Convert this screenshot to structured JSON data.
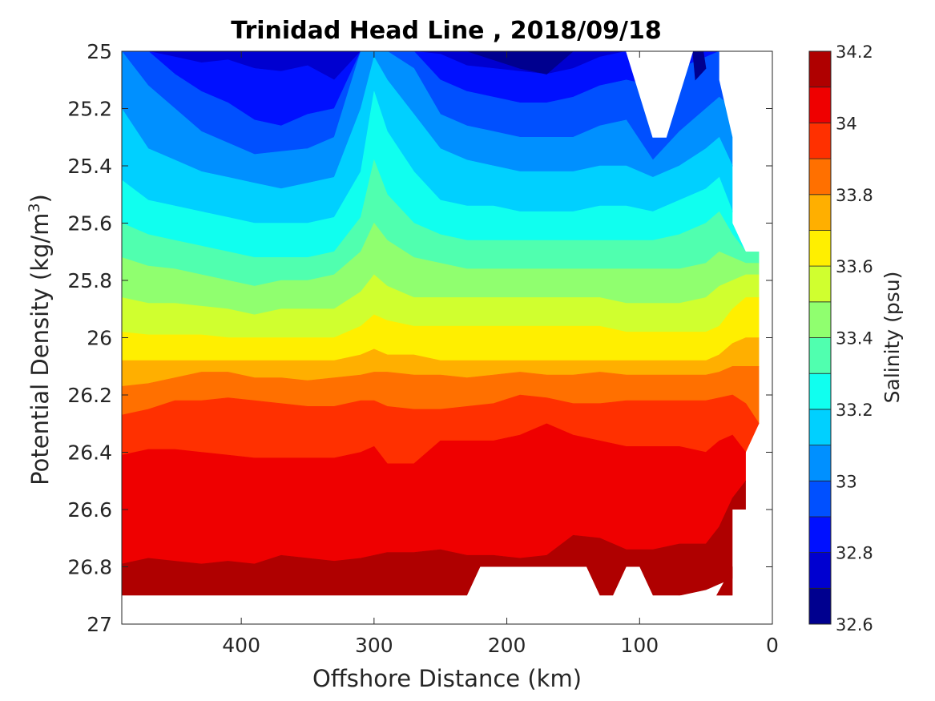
{
  "chart_data": {
    "type": "heatmap",
    "subtype": "filled-contour",
    "title": "Trinidad Head Line , 2018/09/18",
    "xlabel": "Offshore Distance (km)",
    "ylabel_main": "Potential Density (kg/m",
    "ylabel_sup": "3",
    "ylabel_tail": ")",
    "colorbar_label": "Salinity (psu)",
    "xlim": [
      490,
      0
    ],
    "x_reversed": true,
    "ylim": [
      25,
      27
    ],
    "y_reversed": true,
    "x_ticks": [
      400,
      300,
      200,
      100,
      0
    ],
    "x_tick_labels": [
      "400",
      "300",
      "200",
      "100",
      "0"
    ],
    "y_ticks": [
      25,
      25.2,
      25.4,
      25.6,
      25.8,
      26,
      26.2,
      26.4,
      26.6,
      26.8,
      27
    ],
    "y_tick_labels": [
      "25",
      "25.2",
      "25.4",
      "25.6",
      "25.8",
      "26",
      "26.2",
      "26.4",
      "26.6",
      "26.8",
      "27"
    ],
    "colorbar_range": [
      32.6,
      34.2
    ],
    "colorbar_levels": [
      32.6,
      32.7,
      32.8,
      32.9,
      33.0,
      33.1,
      33.2,
      33.3,
      33.4,
      33.5,
      33.6,
      33.7,
      33.8,
      33.9,
      34.0,
      34.1,
      34.2
    ],
    "colorbar_ticks": [
      32.6,
      32.8,
      33,
      33.2,
      33.4,
      33.6,
      33.8,
      34,
      34.2
    ],
    "colorbar_tick_labels": [
      "32.6",
      "32.8",
      "33",
      "33.2",
      "33.4",
      "33.6",
      "33.8",
      "34",
      "34.2"
    ],
    "colormap": [
      "#00008f",
      "#0000d0",
      "#0010ff",
      "#0050ff",
      "#0090ff",
      "#00d0ff",
      "#10ffef",
      "#50ffaf",
      "#90ff6f",
      "#d0ff2f",
      "#ffef00",
      "#ffaf00",
      "#ff7000",
      "#ff3000",
      "#ef0000",
      "#af0000"
    ],
    "x_profile": [
      490,
      470,
      450,
      430,
      410,
      390,
      370,
      350,
      330,
      310,
      300,
      290,
      270,
      250,
      230,
      210,
      190,
      170,
      150,
      130,
      110,
      90,
      70,
      50,
      40,
      30,
      20,
      10
    ],
    "iso_salinity_depths": [
      {
        "salinity": 32.8,
        "density": [
          25.0,
          25.0,
          25.02,
          25.04,
          25.03,
          25.06,
          25.07,
          25.05,
          25.1,
          25.0,
          25.0,
          25.0,
          25.0,
          25.01,
          25.05,
          25.06,
          25.07,
          25.08,
          25.06,
          25.02,
          25.0,
          25.0,
          25.0,
          25.0,
          25.0,
          25.0,
          25.0,
          25.0
        ]
      },
      {
        "salinity": 32.9,
        "density": [
          25.0,
          25.0,
          25.08,
          25.14,
          25.18,
          25.24,
          25.26,
          25.22,
          25.2,
          25.0,
          25.0,
          25.0,
          25.0,
          25.1,
          25.14,
          25.16,
          25.18,
          25.18,
          25.16,
          25.12,
          25.1,
          25.12,
          25.06,
          25.02,
          25.0,
          25.0,
          25.0,
          25.0
        ]
      },
      {
        "salinity": 33.0,
        "density": [
          25.0,
          25.12,
          25.2,
          25.28,
          25.32,
          25.36,
          25.35,
          25.34,
          25.3,
          25.0,
          25.0,
          25.0,
          25.06,
          25.22,
          25.26,
          25.28,
          25.3,
          25.3,
          25.3,
          25.26,
          25.24,
          25.38,
          25.28,
          25.2,
          25.16,
          25.2,
          25.3,
          25.3
        ]
      },
      {
        "salinity": 33.1,
        "density": [
          25.2,
          25.34,
          25.38,
          25.42,
          25.44,
          25.46,
          25.48,
          25.46,
          25.44,
          25.2,
          25.02,
          25.1,
          25.22,
          25.34,
          25.38,
          25.4,
          25.42,
          25.42,
          25.42,
          25.4,
          25.4,
          25.44,
          25.4,
          25.34,
          25.3,
          25.4,
          25.5,
          25.5
        ]
      },
      {
        "salinity": 33.2,
        "density": [
          25.45,
          25.52,
          25.54,
          25.56,
          25.58,
          25.6,
          25.6,
          25.6,
          25.58,
          25.42,
          25.14,
          25.28,
          25.42,
          25.52,
          25.54,
          25.54,
          25.56,
          25.56,
          25.56,
          25.54,
          25.54,
          25.56,
          25.52,
          25.48,
          25.44,
          25.56,
          25.64,
          25.64
        ]
      },
      {
        "salinity": 33.3,
        "density": [
          25.6,
          25.64,
          25.66,
          25.68,
          25.7,
          25.72,
          25.72,
          25.72,
          25.7,
          25.58,
          25.38,
          25.5,
          25.6,
          25.64,
          25.66,
          25.66,
          25.66,
          25.66,
          25.66,
          25.66,
          25.66,
          25.66,
          25.64,
          25.6,
          25.56,
          25.64,
          25.7,
          25.7
        ]
      },
      {
        "salinity": 33.4,
        "density": [
          25.72,
          25.75,
          25.76,
          25.78,
          25.8,
          25.82,
          25.8,
          25.8,
          25.78,
          25.7,
          25.6,
          25.66,
          25.72,
          25.74,
          25.76,
          25.76,
          25.76,
          25.76,
          25.76,
          25.76,
          25.76,
          25.76,
          25.76,
          25.74,
          25.7,
          25.72,
          25.74,
          25.74
        ]
      },
      {
        "salinity": 33.5,
        "density": [
          25.86,
          25.88,
          25.88,
          25.89,
          25.9,
          25.92,
          25.9,
          25.9,
          25.9,
          25.84,
          25.78,
          25.82,
          25.86,
          25.86,
          25.86,
          25.86,
          25.86,
          25.86,
          25.86,
          25.86,
          25.88,
          25.88,
          25.88,
          25.86,
          25.82,
          25.8,
          25.78,
          25.78
        ]
      },
      {
        "salinity": 33.6,
        "density": [
          25.98,
          25.99,
          25.99,
          25.99,
          26.0,
          26.0,
          26.0,
          26.0,
          26.0,
          25.96,
          25.92,
          25.94,
          25.96,
          25.96,
          25.96,
          25.96,
          25.96,
          25.96,
          25.96,
          25.96,
          25.98,
          25.98,
          25.98,
          25.98,
          25.96,
          25.9,
          25.86,
          25.86
        ]
      },
      {
        "salinity": 33.7,
        "density": [
          26.08,
          26.08,
          26.08,
          26.08,
          26.08,
          26.08,
          26.08,
          26.08,
          26.08,
          26.06,
          26.04,
          26.06,
          26.06,
          26.08,
          26.08,
          26.08,
          26.08,
          26.08,
          26.08,
          26.08,
          26.08,
          26.08,
          26.08,
          26.08,
          26.06,
          26.02,
          26.0,
          26.0
        ]
      },
      {
        "salinity": 33.8,
        "density": [
          26.17,
          26.16,
          26.14,
          26.12,
          26.12,
          26.14,
          26.14,
          26.15,
          26.14,
          26.13,
          26.12,
          26.12,
          26.13,
          26.13,
          26.14,
          26.13,
          26.12,
          26.13,
          26.13,
          26.12,
          26.13,
          26.13,
          26.13,
          26.13,
          26.12,
          26.1,
          26.1,
          26.1
        ]
      },
      {
        "salinity": 33.9,
        "density": [
          26.27,
          26.25,
          26.22,
          26.22,
          26.21,
          26.22,
          26.23,
          26.24,
          26.24,
          26.22,
          26.22,
          26.24,
          26.25,
          26.25,
          26.24,
          26.23,
          26.2,
          26.21,
          26.23,
          26.23,
          26.22,
          26.22,
          26.22,
          26.22,
          26.21,
          26.2,
          26.23,
          26.3
        ]
      },
      {
        "salinity": 34.0,
        "density": [
          26.41,
          26.39,
          26.39,
          26.4,
          26.41,
          26.42,
          26.42,
          26.42,
          26.42,
          26.4,
          26.38,
          26.44,
          26.44,
          26.36,
          26.36,
          26.36,
          26.34,
          26.3,
          26.34,
          26.36,
          26.38,
          26.38,
          26.38,
          26.4,
          26.36,
          26.34,
          26.4,
          26.4
        ]
      },
      {
        "salinity": 34.1,
        "density": [
          26.79,
          26.77,
          26.78,
          26.79,
          26.78,
          26.79,
          26.76,
          26.77,
          26.78,
          26.77,
          26.76,
          26.75,
          26.75,
          26.74,
          26.76,
          26.76,
          26.77,
          26.76,
          26.69,
          26.7,
          26.74,
          26.74,
          26.72,
          26.72,
          26.66,
          26.56,
          26.5,
          26.5
        ]
      },
      {
        "salinity": 34.2,
        "density": [
          27.0,
          27.0,
          27.0,
          27.0,
          27.0,
          27.0,
          27.0,
          27.0,
          27.0,
          27.0,
          27.0,
          27.0,
          27.0,
          27.0,
          27.0,
          27.0,
          27.0,
          27.0,
          27.0,
          27.0,
          27.0,
          27.0,
          26.9,
          26.88,
          26.86,
          26.84,
          26.84,
          26.84
        ]
      }
    ],
    "data_top_boundary": [
      [
        490,
        25.0
      ],
      [
        10,
        25.0
      ]
    ],
    "data_bottom_boundary": [
      [
        490,
        26.9
      ],
      [
        230,
        26.9
      ],
      [
        220,
        26.8
      ],
      [
        140,
        26.8
      ],
      [
        130,
        26.9
      ],
      [
        120,
        26.9
      ],
      [
        110,
        26.8
      ],
      [
        100,
        26.8
      ],
      [
        90,
        26.9
      ],
      [
        30,
        26.9
      ],
      [
        30,
        26.6
      ],
      [
        20,
        26.6
      ],
      [
        20,
        26.4
      ],
      [
        10,
        26.3
      ],
      [
        10,
        25.7
      ],
      [
        20,
        25.7
      ],
      [
        30,
        25.6
      ],
      [
        30,
        25.3
      ],
      [
        40,
        25.1
      ],
      [
        40,
        25.0
      ]
    ],
    "no_data_regions": [
      [
        [
          110,
          25.0
        ],
        [
          60,
          25.0
        ],
        [
          80,
          25.3
        ],
        [
          90,
          25.3
        ]
      ]
    ]
  }
}
